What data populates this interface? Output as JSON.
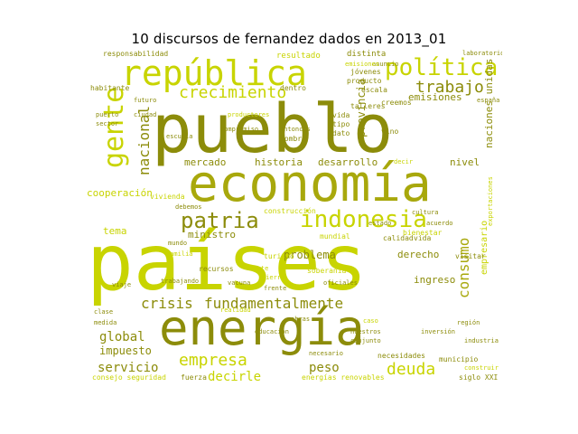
{
  "title": "10 discursos de fernandez dados en 2013_01",
  "colors": {
    "dark": "#8c8c0a",
    "mid": "#a8a80c",
    "light": "#c8d400"
  },
  "words": [
    {
      "t": "pueblo",
      "c": "dark"
    },
    {
      "t": "países",
      "c": "light"
    },
    {
      "t": "economía",
      "c": "mid"
    },
    {
      "t": "energía",
      "c": "dark"
    },
    {
      "t": "república",
      "c": "light"
    },
    {
      "t": "política",
      "c": "light"
    },
    {
      "t": "indonesia",
      "c": "light"
    },
    {
      "t": "gente",
      "c": "light"
    },
    {
      "t": "patria",
      "c": "dark"
    },
    {
      "t": "crecimiento",
      "c": "light"
    },
    {
      "t": "trabajo",
      "c": "dark"
    },
    {
      "t": "nacional",
      "c": "dark"
    },
    {
      "t": "consumo",
      "c": "mid"
    },
    {
      "t": "empresa",
      "c": "light"
    },
    {
      "t": "deuda",
      "c": "light"
    },
    {
      "t": "crisis",
      "c": "dark"
    },
    {
      "t": "fundamentalmente",
      "c": "dark"
    },
    {
      "t": "global",
      "c": "dark"
    },
    {
      "t": "servicio",
      "c": "dark"
    },
    {
      "t": "decirle",
      "c": "light"
    },
    {
      "t": "peso",
      "c": "dark"
    },
    {
      "t": "impuesto",
      "c": "dark"
    },
    {
      "t": "problema",
      "c": "dark"
    },
    {
      "t": "provincia",
      "c": "dark"
    },
    {
      "t": "emisiones",
      "c": "dark"
    },
    {
      "t": "mercado",
      "c": "dark"
    },
    {
      "t": "historia",
      "c": "dark"
    },
    {
      "t": "desarrollo",
      "c": "dark"
    },
    {
      "t": "nivel",
      "c": "dark"
    },
    {
      "t": "naciones unidas",
      "c": "dark"
    },
    {
      "t": "cooperación",
      "c": "light"
    },
    {
      "t": "ministro",
      "c": "dark"
    },
    {
      "t": "tema",
      "c": "light"
    },
    {
      "t": "derecho",
      "c": "dark"
    },
    {
      "t": "ingreso",
      "c": "dark"
    },
    {
      "t": "empresario",
      "c": "light"
    },
    {
      "t": "escala",
      "c": "dark"
    },
    {
      "t": "vivienda",
      "c": "light"
    },
    {
      "t": "municipio",
      "c": "dark"
    },
    {
      "t": "siglo XXI",
      "c": "dark"
    },
    {
      "t": "energías renovables",
      "c": "light"
    },
    {
      "t": "consejo seguridad",
      "c": "light"
    },
    {
      "t": "fuerza",
      "c": "dark"
    },
    {
      "t": "resultado",
      "c": "light"
    },
    {
      "t": "distinta",
      "c": "dark"
    },
    {
      "t": "responsabilidad",
      "c": "dark"
    },
    {
      "t": "dentro",
      "c": "dark"
    },
    {
      "t": "vino",
      "c": "dark"
    },
    {
      "t": "vida",
      "c": "dark"
    },
    {
      "t": "tipo",
      "c": "dark"
    },
    {
      "t": "dato",
      "c": "dark"
    },
    {
      "t": "nombre",
      "c": "dark"
    },
    {
      "t": "jóvenes",
      "c": "dark"
    },
    {
      "t": "producto",
      "c": "dark"
    },
    {
      "t": "creemos",
      "c": "dark"
    },
    {
      "t": "talleres",
      "c": "dark"
    },
    {
      "t": "habitante",
      "c": "dark"
    },
    {
      "t": "construcción",
      "c": "light"
    },
    {
      "t": "mundial",
      "c": "light"
    },
    {
      "t": "bienestar",
      "c": "light"
    },
    {
      "t": "calidad",
      "c": "dark"
    },
    {
      "t": "vida",
      "c": "dark"
    },
    {
      "t": "turismo",
      "c": "light"
    },
    {
      "t": "recursos",
      "c": "dark"
    },
    {
      "t": "soberanía",
      "c": "light"
    },
    {
      "t": "visitar",
      "c": "dark"
    },
    {
      "t": "necesidades",
      "c": "dark"
    },
    {
      "t": "exportaciones",
      "c": "light"
    },
    {
      "t": "anuncio",
      "c": "dark"
    },
    {
      "t": "laboratorio",
      "c": "dark"
    },
    {
      "t": "emisiones",
      "c": "light"
    },
    {
      "t": "necesario",
      "c": "dark"
    },
    {
      "t": "construir",
      "c": "light"
    },
    {
      "t": "medida",
      "c": "dark"
    },
    {
      "t": "fuerte",
      "c": "light"
    },
    {
      "t": "clase",
      "c": "dark"
    },
    {
      "t": "viaje",
      "c": "dark"
    },
    {
      "t": "realidad",
      "c": "light"
    },
    {
      "t": "tierra",
      "c": "light"
    },
    {
      "t": "vacuna",
      "c": "dark"
    },
    {
      "t": "frente",
      "c": "dark"
    },
    {
      "t": "oficiales",
      "c": "dark"
    },
    {
      "t": "trabajando",
      "c": "dark"
    },
    {
      "t": "escuela",
      "c": "dark"
    },
    {
      "t": "españa",
      "c": "dark"
    },
    {
      "t": "debemos",
      "c": "dark"
    },
    {
      "t": "decir",
      "c": "light"
    },
    {
      "t": "compromiso",
      "c": "dark"
    },
    {
      "t": "productores",
      "c": "light"
    },
    {
      "t": "entonces",
      "c": "dark"
    },
    {
      "t": "caso",
      "c": "light"
    },
    {
      "t": "nuestros",
      "c": "dark"
    },
    {
      "t": "conjunto",
      "c": "dark"
    },
    {
      "t": "obras",
      "c": "dark"
    },
    {
      "t": "inversión",
      "c": "dark"
    },
    {
      "t": "industria",
      "c": "dark"
    },
    {
      "t": "futuro",
      "c": "dark"
    },
    {
      "t": "puerto",
      "c": "dark"
    },
    {
      "t": "sector",
      "c": "dark"
    },
    {
      "t": "cultura",
      "c": "dark"
    },
    {
      "t": "acuerdo",
      "c": "dark"
    },
    {
      "t": "estado",
      "c": "dark"
    },
    {
      "t": "familia",
      "c": "light"
    },
    {
      "t": "mundo",
      "c": "dark"
    },
    {
      "t": "región",
      "c": "dark"
    },
    {
      "t": "educación",
      "c": "dark"
    },
    {
      "t": "ciudad",
      "c": "dark"
    }
  ]
}
